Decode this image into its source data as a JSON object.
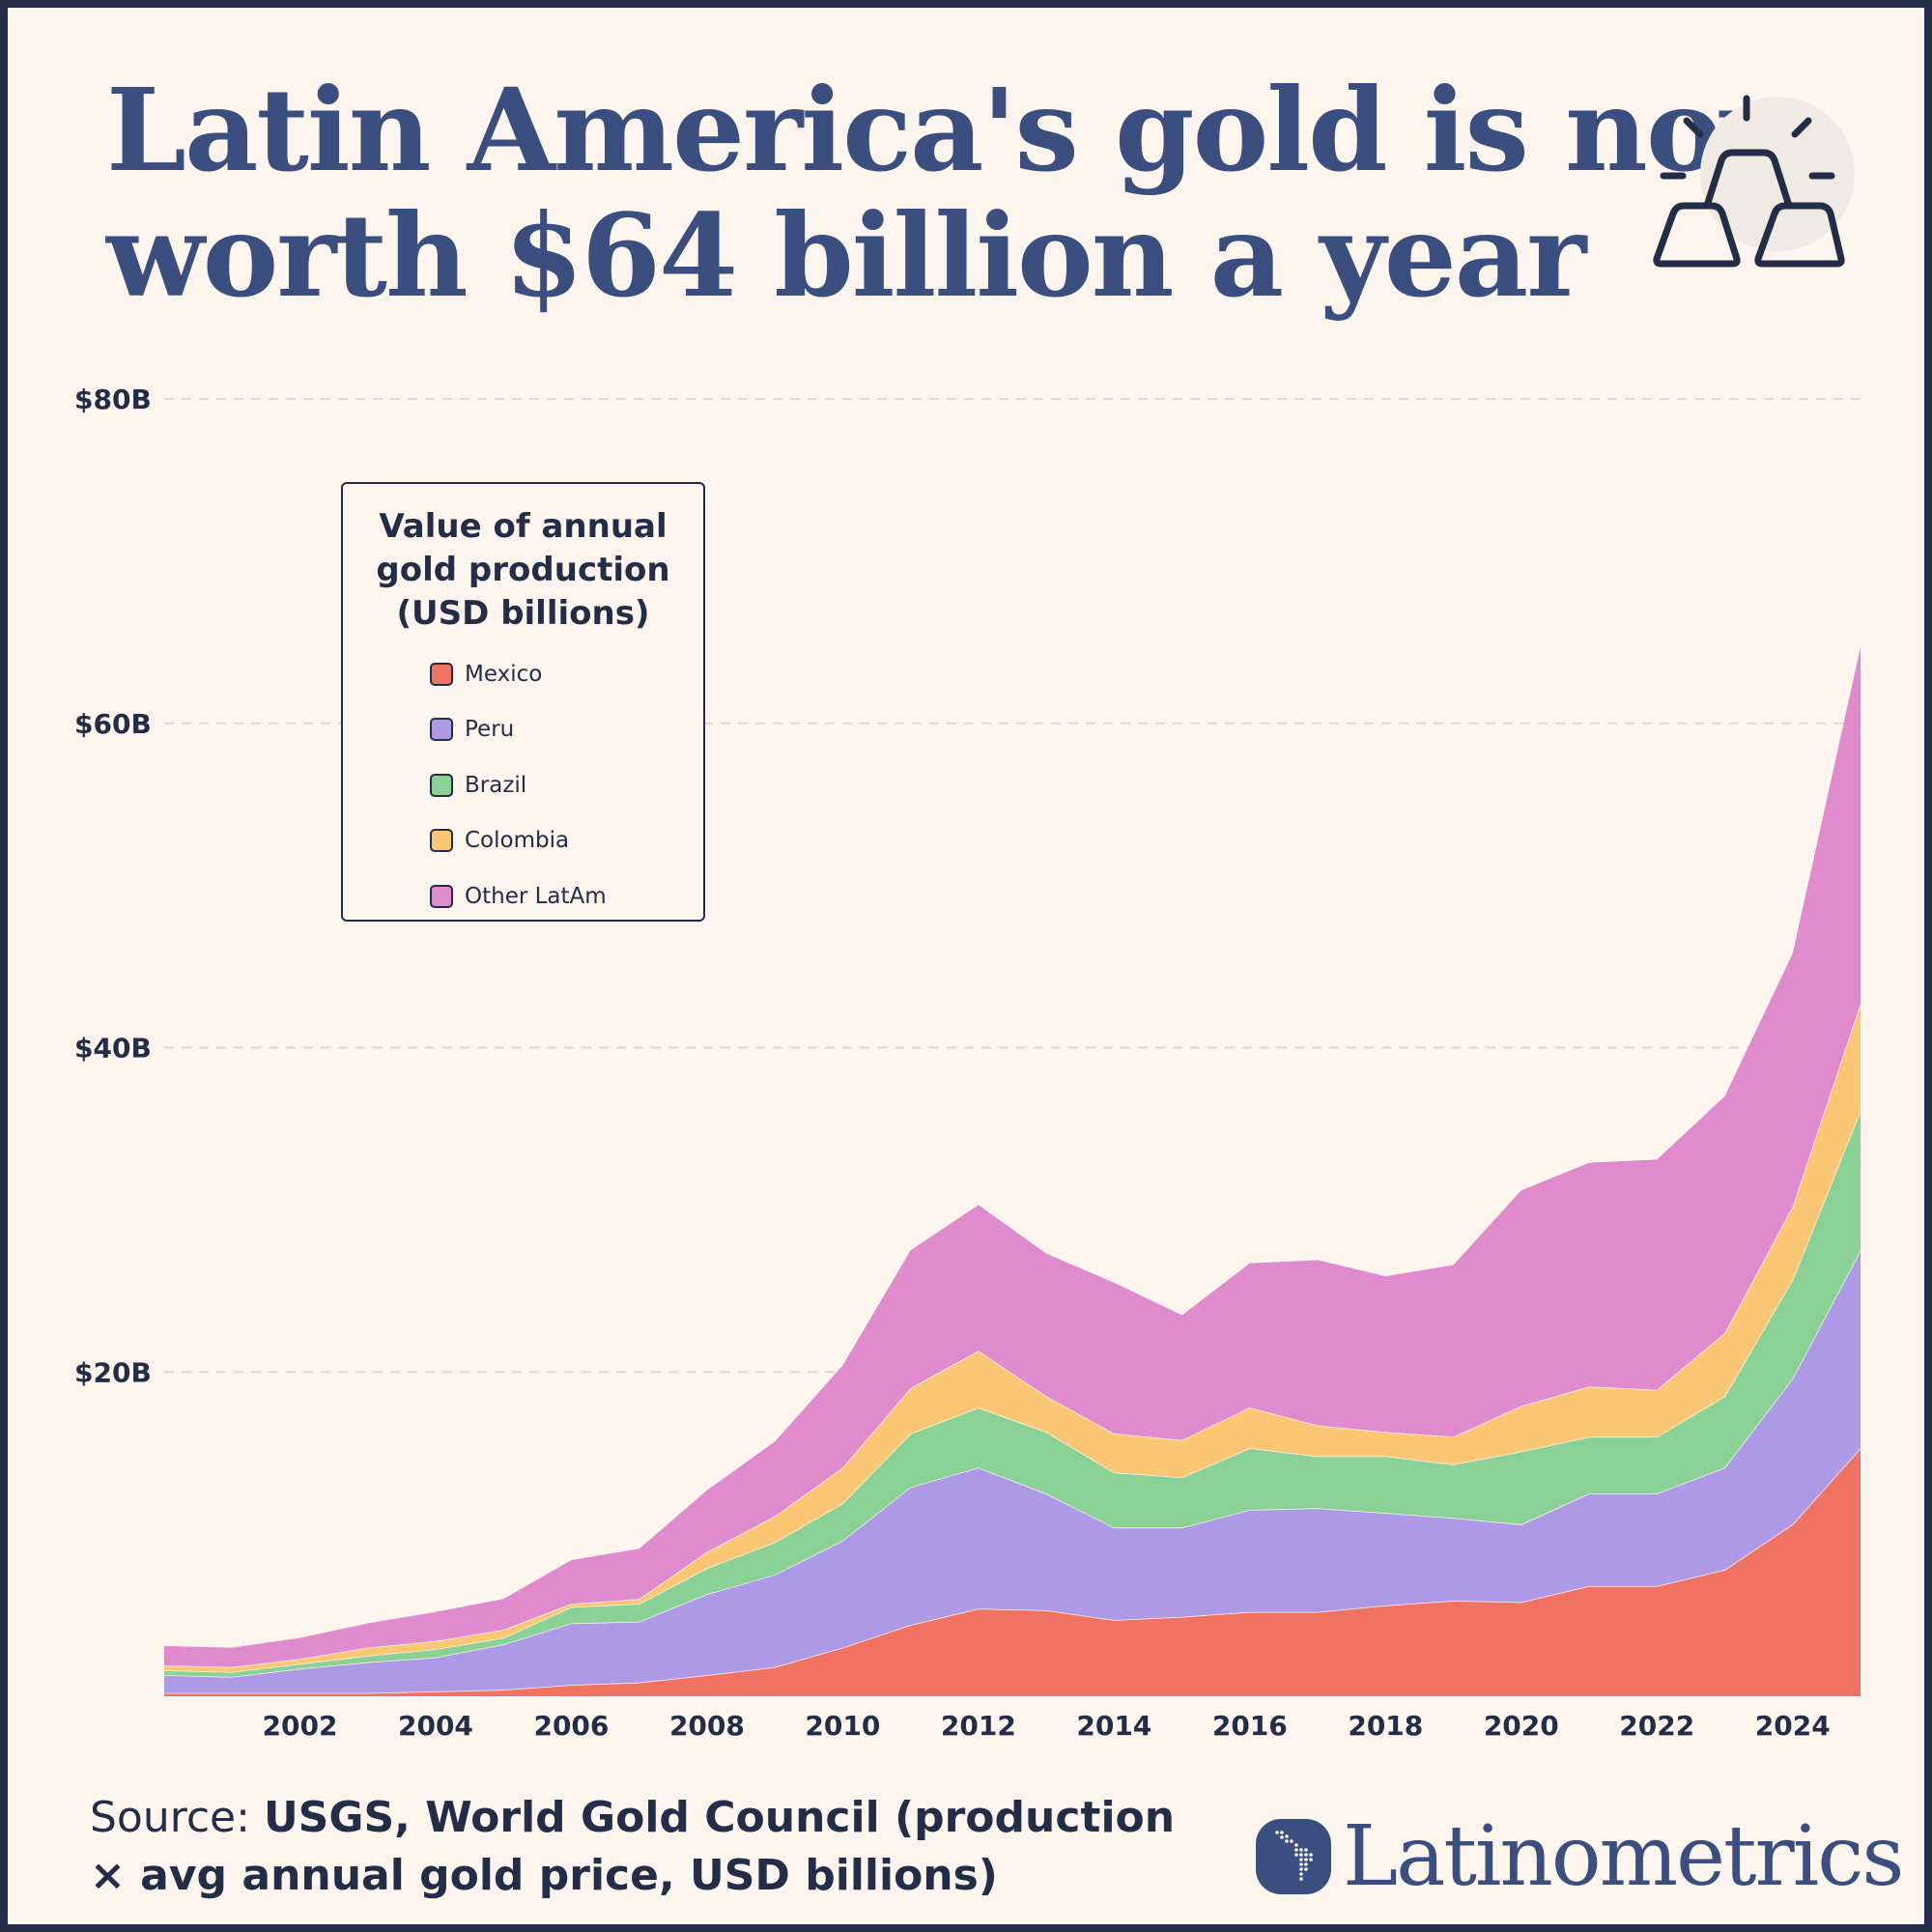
{
  "title": {
    "line1": "Latin America's gold is now",
    "line2": "worth $64 billion a year"
  },
  "icon": "gold-bars-icon",
  "chart_data": {
    "type": "area",
    "stacked": true,
    "title": "Value of annual gold production (USD billions)",
    "title_lines": [
      "Value of annual",
      "gold production",
      "(USD billions)"
    ],
    "xlabel": "",
    "ylabel": "",
    "x": [
      2000,
      2001,
      2002,
      2003,
      2004,
      2005,
      2006,
      2007,
      2008,
      2009,
      2010,
      2011,
      2012,
      2013,
      2014,
      2015,
      2016,
      2017,
      2018,
      2019,
      2020,
      2021,
      2022,
      2023,
      2024,
      2025
    ],
    "x_ticks": [
      "2002",
      "2004",
      "2006",
      "2008",
      "2010",
      "2012",
      "2014",
      "2016",
      "2018",
      "2020",
      "2022",
      "2024"
    ],
    "y_ticks": [
      "$20B",
      "$40B",
      "$60B",
      "$80B"
    ],
    "y_tick_values": [
      20,
      40,
      60,
      80
    ],
    "ylim": [
      0,
      80
    ],
    "xlim": [
      2000,
      2025
    ],
    "grid": "horizontal dashed",
    "legend_position": "top-left",
    "series": [
      {
        "name": "Mexico",
        "color": "#ef7262",
        "values": [
          0.2,
          0.2,
          0.2,
          0.2,
          0.3,
          0.4,
          0.7,
          0.85,
          1.3,
          1.8,
          3.0,
          4.4,
          5.4,
          5.3,
          4.7,
          4.9,
          5.2,
          5.2,
          5.6,
          5.9,
          5.8,
          6.8,
          6.8,
          7.8,
          10.6,
          15.3
        ]
      },
      {
        "name": "Peru",
        "color": "#ae99e6",
        "values": [
          1.1,
          1.0,
          1.5,
          1.9,
          2.1,
          2.8,
          3.8,
          3.75,
          5.0,
          5.7,
          6.6,
          8.5,
          8.7,
          7.2,
          5.7,
          5.5,
          6.3,
          6.4,
          5.7,
          5.1,
          4.8,
          5.7,
          5.7,
          6.3,
          9.0,
          12.2
        ]
      },
      {
        "name": "Brazil",
        "color": "#8ad195",
        "values": [
          0.3,
          0.3,
          0.3,
          0.4,
          0.5,
          0.4,
          1.0,
          1.1,
          1.6,
          2.0,
          2.3,
          3.3,
          3.7,
          3.8,
          3.4,
          3.1,
          3.8,
          3.2,
          3.5,
          3.3,
          4.5,
          3.5,
          3.5,
          4.4,
          6.1,
          8.6
        ]
      },
      {
        "name": "Colombia",
        "color": "#fbc774",
        "values": [
          0.3,
          0.3,
          0.3,
          0.5,
          0.5,
          0.5,
          0.2,
          0.3,
          1.0,
          1.6,
          2.2,
          2.8,
          3.5,
          2.2,
          2.4,
          2.3,
          2.5,
          1.9,
          1.5,
          1.7,
          2.8,
          3.1,
          2.9,
          3.9,
          4.5,
          6.6
        ]
      },
      {
        "name": "Other LatAm",
        "color": "#e08bcd",
        "values": [
          1.2,
          1.2,
          1.3,
          1.5,
          1.8,
          1.9,
          2.7,
          3.1,
          3.8,
          4.6,
          6.3,
          8.5,
          9.0,
          8.8,
          9.3,
          7.7,
          8.9,
          10.2,
          9.6,
          10.6,
          13.3,
          13.8,
          14.2,
          14.6,
          15.6,
          22.0
        ]
      }
    ]
  },
  "source": {
    "label": "Source:",
    "text1": "USGS, World Gold Council (production",
    "text2": "× avg annual gold price, USD billions)"
  },
  "brand": {
    "name": "Latinometrics",
    "logo_icon": "latin-america-map-icon"
  }
}
